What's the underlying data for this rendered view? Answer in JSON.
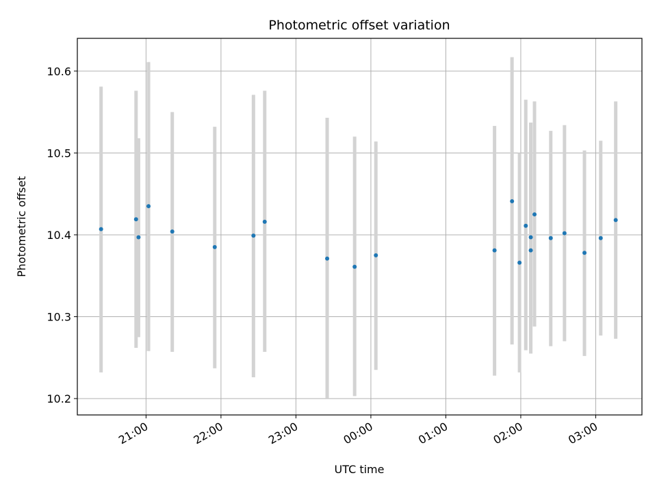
{
  "chart_data": {
    "type": "scatter",
    "title": "Photometric offset variation",
    "xlabel": "UTC time",
    "ylabel": "Photometric offset",
    "x_ticks": [
      "21:00",
      "22:00",
      "23:00",
      "00:00",
      "01:00",
      "02:00",
      "03:00"
    ],
    "y_ticks": [
      "10.2",
      "10.3",
      "10.4",
      "10.5",
      "10.6"
    ],
    "xlim": [
      "20:05",
      "03:37"
    ],
    "ylim": [
      10.18,
      10.64
    ],
    "grid": true,
    "marker_color": "#1f77b4",
    "errorbar_color": "#d3d3d3",
    "points": [
      {
        "time": "20:24",
        "y": 10.407,
        "low": 10.232,
        "high": 10.581
      },
      {
        "time": "20:52",
        "y": 10.419,
        "low": 10.262,
        "high": 10.576
      },
      {
        "time": "20:54",
        "y": 10.397,
        "low": 10.275,
        "high": 10.518
      },
      {
        "time": "21:02",
        "y": 10.435,
        "low": 10.258,
        "high": 10.611
      },
      {
        "time": "21:21",
        "y": 10.404,
        "low": 10.257,
        "high": 10.55
      },
      {
        "time": "21:55",
        "y": 10.385,
        "low": 10.237,
        "high": 10.532
      },
      {
        "time": "22:26",
        "y": 10.399,
        "low": 10.226,
        "high": 10.571
      },
      {
        "time": "22:35",
        "y": 10.416,
        "low": 10.257,
        "high": 10.576
      },
      {
        "time": "23:25",
        "y": 10.371,
        "low": 10.2,
        "high": 10.543
      },
      {
        "time": "23:47",
        "y": 10.361,
        "low": 10.203,
        "high": 10.52
      },
      {
        "time": "00:04",
        "y": 10.375,
        "low": 10.235,
        "high": 10.514
      },
      {
        "time": "01:39",
        "y": 10.381,
        "low": 10.228,
        "high": 10.533
      },
      {
        "time": "01:53",
        "y": 10.441,
        "low": 10.266,
        "high": 10.617
      },
      {
        "time": "01:59",
        "y": 10.366,
        "low": 10.232,
        "high": 10.5
      },
      {
        "time": "02:04",
        "y": 10.411,
        "low": 10.259,
        "high": 10.565
      },
      {
        "time": "02:08",
        "y": 10.397,
        "low": 10.255,
        "high": 10.537
      },
      {
        "time": "02:08",
        "y": 10.381,
        "low": 10.26,
        "high": 10.537
      },
      {
        "time": "02:11",
        "y": 10.425,
        "low": 10.288,
        "high": 10.563
      },
      {
        "time": "02:24",
        "y": 10.396,
        "low": 10.264,
        "high": 10.527
      },
      {
        "time": "02:35",
        "y": 10.402,
        "low": 10.27,
        "high": 10.534
      },
      {
        "time": "02:51",
        "y": 10.378,
        "low": 10.252,
        "high": 10.503
      },
      {
        "time": "03:04",
        "y": 10.396,
        "low": 10.277,
        "high": 10.515
      },
      {
        "time": "03:16",
        "y": 10.418,
        "low": 10.273,
        "high": 10.563
      }
    ]
  }
}
